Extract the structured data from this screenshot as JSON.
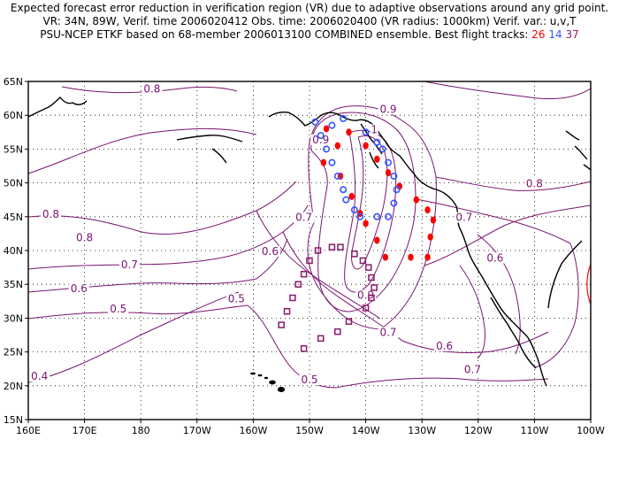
{
  "header": {
    "line1": "Expected forecast error reduction in verification region (VR) due to adaptive observations around any grid point.",
    "line2": "VR: 34N, 89W,  Verif. time 2006020412   Obs. time: 2006020400  (VR radius: 1000km)     Verif. var.: u,v,T",
    "line3": "PSU-NCEP ETKF based on 68-member 2006013100 COMBINED ensemble.   Best flight tracks:",
    "track_ids": [
      {
        "id": "26",
        "color": "#ff0000"
      },
      {
        "id": "14",
        "color": "#3355ff"
      },
      {
        "id": "37",
        "color": "#8b1a6b"
      }
    ]
  },
  "map": {
    "lon_range": [
      -200,
      -100
    ],
    "lat_range": [
      15,
      65
    ],
    "x_ticks": [
      "160E",
      "170E",
      "180",
      "170W",
      "160W",
      "150W",
      "140W",
      "130W",
      "120W",
      "110W",
      "100W"
    ],
    "y_ticks": [
      "15N",
      "20N",
      "25N",
      "30N",
      "35N",
      "40N",
      "45N",
      "50N",
      "55N",
      "60N",
      "65N"
    ],
    "contour_color": "#7a1470",
    "contour_labels": [
      {
        "text": "0.8",
        "lon": -196,
        "lat": 45
      },
      {
        "text": "0.8",
        "lon": -190,
        "lat": 41.5
      },
      {
        "text": "0.8",
        "lon": -178,
        "lat": 63.5
      },
      {
        "text": "0.7",
        "lon": -182,
        "lat": 37.5
      },
      {
        "text": "0.6",
        "lon": -191,
        "lat": 34
      },
      {
        "text": "0.5",
        "lon": -184,
        "lat": 31
      },
      {
        "text": "0.5",
        "lon": -163,
        "lat": 32.5
      },
      {
        "text": "0.4",
        "lon": -198,
        "lat": 21
      },
      {
        "text": "0.6",
        "lon": -157,
        "lat": 39.5
      },
      {
        "text": "0.7",
        "lon": -151,
        "lat": 44.5
      },
      {
        "text": "0.9",
        "lon": -148,
        "lat": 56
      },
      {
        "text": "1",
        "lon": -138.5,
        "lat": 57.5
      },
      {
        "text": "0.9",
        "lon": -136,
        "lat": 60.5
      },
      {
        "text": "0.9",
        "lon": -140,
        "lat": 33
      },
      {
        "text": "0.7",
        "lon": -136,
        "lat": 27.5
      },
      {
        "text": "0.5",
        "lon": -150,
        "lat": 20.5
      },
      {
        "text": "0.7",
        "lon": -121,
        "lat": 22
      },
      {
        "text": "0.6",
        "lon": -126,
        "lat": 25.5
      },
      {
        "text": "0.6",
        "lon": -117,
        "lat": 38.5
      },
      {
        "text": "0.7",
        "lon": -122.5,
        "lat": 44.5
      },
      {
        "text": "0.8",
        "lon": -110,
        "lat": 49.5
      }
    ],
    "track_red": [
      [
        -147,
        58
      ],
      [
        -145,
        55.5
      ],
      [
        -143,
        57.5
      ],
      [
        -140,
        55.5
      ],
      [
        -138,
        53.5
      ],
      [
        -136,
        51.5
      ],
      [
        -134,
        49.5
      ],
      [
        -131,
        47.5
      ],
      [
        -129,
        46
      ],
      [
        -128,
        44.5
      ],
      [
        -128.5,
        42
      ],
      [
        -129,
        39
      ],
      [
        -132,
        39
      ],
      [
        -136.5,
        39
      ],
      [
        -138,
        41.5
      ],
      [
        -140,
        44
      ],
      [
        -141,
        45.5
      ],
      [
        -142.5,
        48
      ],
      [
        -144.5,
        51
      ],
      [
        -147.5,
        53
      ]
    ],
    "track_blue": [
      [
        -149,
        59
      ],
      [
        -148,
        57
      ],
      [
        -147,
        55
      ],
      [
        -146,
        53
      ],
      [
        -145,
        51
      ],
      [
        -144,
        49
      ],
      [
        -143.5,
        47.5
      ],
      [
        -142,
        46
      ],
      [
        -141,
        45
      ],
      [
        -138,
        45
      ],
      [
        -136,
        45
      ],
      [
        -135,
        47
      ],
      [
        -134.5,
        49
      ],
      [
        -135,
        51
      ],
      [
        -136,
        53
      ],
      [
        -137,
        55
      ],
      [
        -138,
        56
      ],
      [
        -140,
        57.5
      ],
      [
        -144,
        59.5
      ],
      [
        -146,
        58.5
      ]
    ],
    "track_purple": [
      [
        -155,
        29
      ],
      [
        -154,
        31
      ],
      [
        -153,
        33
      ],
      [
        -152,
        35
      ],
      [
        -151,
        36.5
      ],
      [
        -150,
        38.5
      ],
      [
        -148.5,
        40
      ],
      [
        -146,
        40.5
      ],
      [
        -144.5,
        40.5
      ],
      [
        -142,
        39.5
      ],
      [
        -140.5,
        38.5
      ],
      [
        -139.5,
        37.5
      ],
      [
        -139,
        36
      ],
      [
        -138.5,
        34.5
      ],
      [
        -139,
        33
      ],
      [
        -140,
        31.5
      ],
      [
        -143,
        29.5
      ],
      [
        -145,
        28
      ],
      [
        -148,
        27
      ],
      [
        -151,
        25.5
      ]
    ],
    "vr_center": {
      "lon": -89,
      "lat": 34
    }
  }
}
